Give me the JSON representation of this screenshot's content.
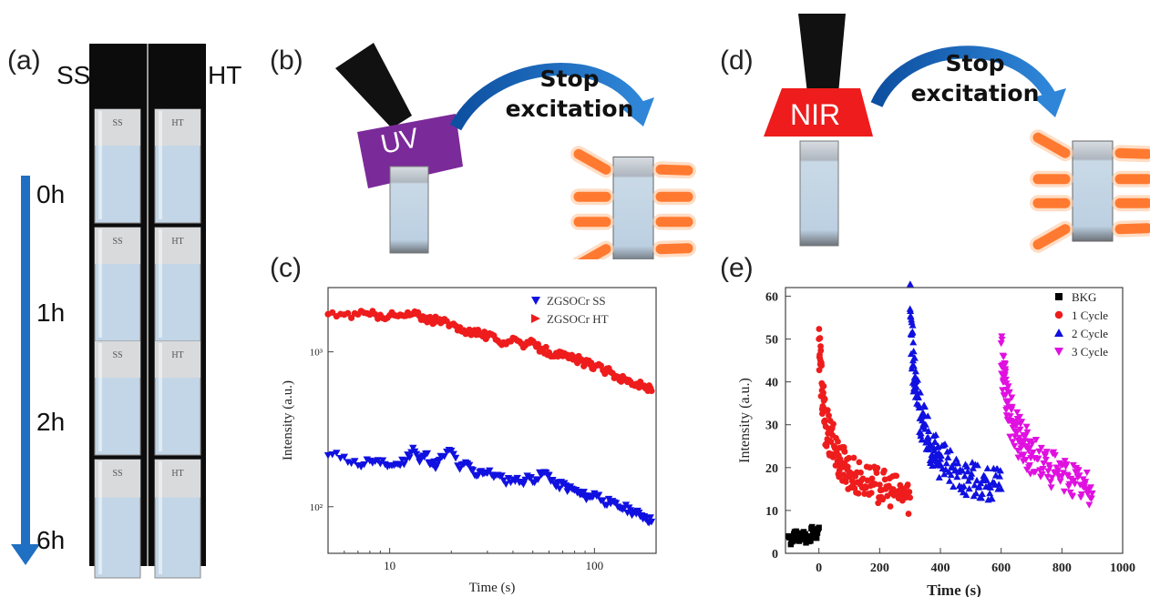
{
  "panel_a": {
    "label": "(a)",
    "col_left": "SS",
    "col_right": "HT",
    "cuvette_left": "SS",
    "cuvette_right": "HT",
    "times": [
      "0h",
      "1h",
      "2h",
      "6h"
    ]
  },
  "panel_b": {
    "label": "(b)",
    "source": "UV",
    "arrow_text_1": "Stop",
    "arrow_text_2": "excitation",
    "source_color": "#7b2a9a"
  },
  "panel_d": {
    "label": "(d)",
    "source": "NIR",
    "arrow_text_1": "Stop",
    "arrow_text_2": "excitation",
    "source_color": "#ee1c1c"
  },
  "chart_data": [
    {
      "panel": "(c)",
      "type": "scatter",
      "xlabel": "Time (s)",
      "ylabel": "Intensity (a.u.)",
      "x_scale": "log",
      "y_scale": "log",
      "xlim": [
        5,
        200
      ],
      "ylim": [
        50,
        2600
      ],
      "x_ticks": [
        10,
        100
      ],
      "x_tick_labels": [
        "10",
        "100"
      ],
      "y_ticks": [
        100,
        1000
      ],
      "y_tick_labels": [
        "10²",
        "10³"
      ],
      "legend_position": "top-right",
      "series": [
        {
          "name": "ZGSOCr SS",
          "color": "#1010e0",
          "marker": "triangle-down",
          "x": [
            5,
            6,
            7,
            8,
            9,
            10,
            11,
            12,
            13,
            14,
            15,
            16,
            17,
            18,
            20,
            22,
            24,
            26,
            28,
            30,
            33,
            36,
            40,
            44,
            48,
            52,
            56,
            60,
            65,
            70,
            75,
            80,
            85,
            90,
            95,
            100,
            110,
            120,
            130,
            140,
            150,
            160,
            170,
            180,
            190
          ],
          "y": [
            215,
            210,
            185,
            198,
            190,
            185,
            188,
            200,
            240,
            195,
            220,
            190,
            185,
            210,
            230,
            175,
            190,
            160,
            170,
            165,
            160,
            148,
            150,
            145,
            155,
            150,
            165,
            160,
            135,
            140,
            130,
            128,
            120,
            118,
            115,
            122,
            110,
            105,
            100,
            98,
            95,
            90,
            88,
            85,
            80
          ]
        },
        {
          "name": "ZGSOCr HT",
          "color": "#ee1c1c",
          "marker": "circle",
          "x": [
            5,
            6,
            7,
            8,
            9,
            10,
            11,
            12,
            13,
            14,
            15,
            16,
            17,
            18,
            20,
            22,
            24,
            26,
            28,
            30,
            33,
            36,
            40,
            44,
            48,
            52,
            56,
            60,
            65,
            70,
            75,
            80,
            85,
            90,
            95,
            100,
            110,
            120,
            130,
            140,
            150,
            160,
            170,
            180,
            190
          ],
          "y": [
            1750,
            1740,
            1745,
            1740,
            1730,
            1720,
            1700,
            1710,
            1760,
            1700,
            1660,
            1620,
            1580,
            1560,
            1500,
            1440,
            1320,
            1380,
            1300,
            1260,
            1200,
            1150,
            1230,
            1130,
            1140,
            1080,
            1040,
            990,
            980,
            940,
            910,
            900,
            880,
            850,
            830,
            810,
            760,
            740,
            690,
            660,
            640,
            620,
            600,
            590,
            560
          ]
        }
      ]
    },
    {
      "panel": "(e)",
      "type": "scatter",
      "xlabel": "Time (s)",
      "ylabel": "Intensity (a.u.)",
      "xlim": [
        -110,
        1000
      ],
      "ylim": [
        0,
        62
      ],
      "x_ticks": [
        0,
        200,
        400,
        600,
        800,
        1000
      ],
      "x_tick_labels": [
        "0",
        "200",
        "400",
        "600",
        "800",
        "1000"
      ],
      "y_ticks": [
        0,
        10,
        20,
        30,
        40,
        50,
        60
      ],
      "y_tick_labels": [
        "0",
        "10",
        "20",
        "30",
        "40",
        "50",
        "60"
      ],
      "legend_position": "top-right",
      "series": [
        {
          "name": "BKG",
          "color": "#000000",
          "marker": "square",
          "x": [
            -100,
            -90,
            -80,
            -70,
            -60,
            -50,
            -40,
            -30,
            -20,
            -10,
            0
          ],
          "y": [
            4,
            3,
            5,
            3,
            4,
            5,
            3,
            4,
            5,
            4,
            6
          ]
        },
        {
          "name": "1 Cycle",
          "color": "#ee1c1c",
          "marker": "circle",
          "x": [
            0,
            5,
            10,
            15,
            20,
            30,
            40,
            50,
            60,
            70,
            80,
            90,
            100,
            120,
            140,
            160,
            180,
            200,
            220,
            240,
            260,
            280,
            300
          ],
          "y": [
            50,
            45,
            38,
            34,
            31,
            28,
            26,
            25,
            23,
            22,
            21,
            20,
            19,
            18,
            17,
            17,
            16,
            16,
            15,
            15,
            14,
            14,
            13
          ]
        },
        {
          "name": "2 Cycle",
          "color": "#1010e0",
          "marker": "triangle-up",
          "x": [
            300,
            305,
            310,
            315,
            320,
            330,
            340,
            350,
            360,
            370,
            380,
            390,
            400,
            420,
            440,
            460,
            480,
            500,
            520,
            540,
            560,
            580,
            600
          ],
          "y": [
            57,
            51,
            45,
            41,
            38,
            34,
            31,
            29,
            27,
            25,
            24,
            23,
            22,
            21,
            20,
            19,
            18,
            18,
            17,
            17,
            16,
            16,
            15
          ]
        },
        {
          "name": "3 Cycle",
          "color": "#e010e0",
          "marker": "triangle-down",
          "x": [
            600,
            605,
            610,
            615,
            620,
            630,
            640,
            650,
            660,
            670,
            680,
            690,
            700,
            720,
            740,
            760,
            780,
            800,
            820,
            840,
            860,
            880,
            900
          ],
          "y": [
            49,
            44,
            40,
            37,
            35,
            32,
            30,
            28,
            27,
            26,
            25,
            24,
            23,
            22,
            21,
            20,
            19,
            18,
            18,
            17,
            16,
            15,
            14
          ]
        }
      ]
    }
  ]
}
